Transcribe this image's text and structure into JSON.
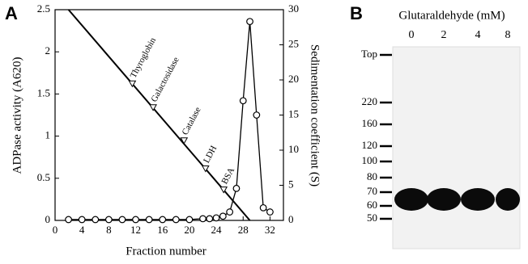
{
  "chart_data": {
    "type": "line",
    "panel": "A",
    "xlabel": "Fraction number",
    "ylabel": "ADPase activity (A620)",
    "y2label": "Sedimentation coefficient (S)",
    "xlim": [
      0,
      34
    ],
    "xticks": [
      0,
      4,
      8,
      12,
      16,
      20,
      24,
      28,
      32
    ],
    "ylim": [
      0,
      2.5
    ],
    "yticks": [
      0,
      0.5,
      1,
      1.5,
      2,
      2.5
    ],
    "y2lim": [
      0,
      30
    ],
    "y2ticks": [
      0,
      5,
      10,
      15,
      20,
      25,
      30
    ],
    "series": [
      {
        "color": "#000000",
        "marker": "circle",
        "x": [
          2,
          4,
          6,
          8,
          10,
          12,
          14,
          16,
          18,
          20,
          22,
          23,
          24,
          25,
          26,
          27,
          28,
          29,
          30,
          31,
          32
        ],
        "values": [
          0.01,
          0.01,
          0.01,
          0.01,
          0.01,
          0.01,
          0.01,
          0.01,
          0.01,
          0.01,
          0.02,
          0.02,
          0.03,
          0.05,
          0.1,
          0.38,
          1.42,
          2.36,
          1.25,
          0.15,
          0.1
        ]
      },
      {
        "color": "#000000",
        "axis": "y2",
        "marker": "none",
        "x": [
          2,
          29
        ],
        "values": [
          30,
          0
        ]
      }
    ],
    "markers": {
      "axis": "y2",
      "labels": [
        "Thyroglobin",
        "Galactosidase",
        "Catalase",
        "LDH",
        "BSA"
      ],
      "x": [
        11.5,
        14.6,
        19.2,
        22.4,
        25.1
      ],
      "values": [
        19.4,
        16,
        11.3,
        7.3,
        4.3
      ]
    }
  },
  "panel_b": {
    "panel": "B",
    "title": "Glutaraldehyde (mM)",
    "lanes": [
      "0",
      "2",
      "4",
      "8"
    ],
    "size_markers": [
      "Top",
      "220",
      "160",
      "120",
      "100",
      "80",
      "70",
      "60",
      "50"
    ]
  }
}
